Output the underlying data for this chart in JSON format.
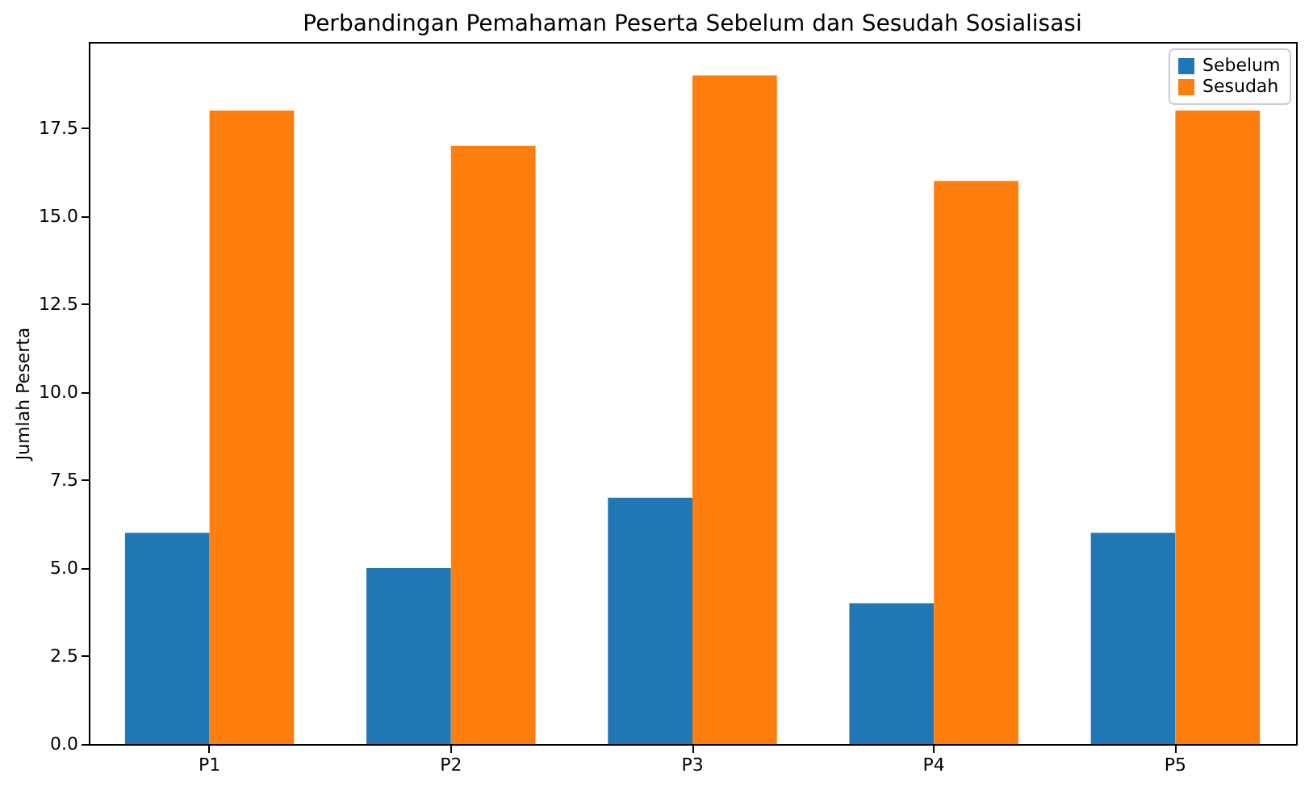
{
  "chart_data": {
    "type": "bar",
    "title": "Perbandingan Pemahaman Peserta Sebelum dan Sesudah Sosialisasi",
    "ylabel": "Jumlah Peserta",
    "categories": [
      "P1",
      "P2",
      "P3",
      "P4",
      "P5"
    ],
    "series": [
      {
        "name": "Sebelum",
        "color": "#1f77b4",
        "values": [
          6,
          5,
          7,
          4,
          6
        ]
      },
      {
        "name": "Sesudah",
        "color": "#ff7f0e",
        "values": [
          18,
          17,
          19,
          16,
          18
        ]
      }
    ],
    "ylim": [
      0,
      19.95
    ],
    "yticks": [
      {
        "value": 0,
        "label": "0.0"
      },
      {
        "value": 2.5,
        "label": "2.5"
      },
      {
        "value": 5,
        "label": "5.0"
      },
      {
        "value": 7.5,
        "label": "7.5"
      },
      {
        "value": 10,
        "label": "10.0"
      },
      {
        "value": 12.5,
        "label": "12.5"
      },
      {
        "value": 15,
        "label": "15.0"
      },
      {
        "value": 17.5,
        "label": "17.5"
      }
    ],
    "grid": false,
    "legend": "top right"
  }
}
